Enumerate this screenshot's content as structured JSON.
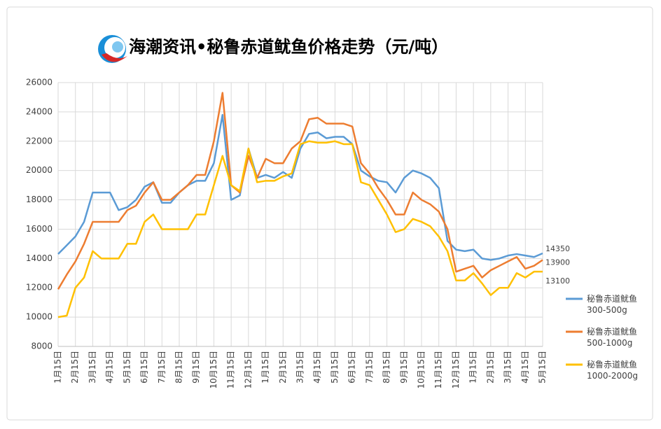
{
  "chart_data": {
    "type": "line",
    "title": "海潮资讯•秘鲁赤道鱿鱼价格走势（元/吨）",
    "categories": [
      "1月15日",
      null,
      "2月15日",
      null,
      "3月15日",
      null,
      "4月15日",
      null,
      "5月15日",
      null,
      "6月15日",
      null,
      "7月15日",
      null,
      "8月15日",
      null,
      "9月15日",
      null,
      "10月15日",
      null,
      "11月15日",
      null,
      "12月15日",
      null,
      "1月15日",
      null,
      "2月15日",
      null,
      "3月15日",
      null,
      "4月15日",
      null,
      "5月15日",
      null,
      "6月15日",
      null,
      "7月15日",
      null,
      "8月15日",
      null,
      "9月15日",
      null,
      "10月15日",
      null,
      "11月15日",
      null,
      "12月15日",
      null,
      "1月15日",
      null,
      "2月15日",
      null,
      "3月15日",
      null,
      "4月15日",
      null,
      "5月15日"
    ],
    "series": [
      {
        "name": "秘鲁赤道鱿鱼300-500g",
        "color": "#5b9bd5",
        "values": [
          14300,
          14900,
          15500,
          16500,
          18500,
          18500,
          18500,
          17300,
          17500,
          18000,
          18900,
          19200,
          17800,
          17800,
          18500,
          19000,
          19300,
          19300,
          20500,
          23800,
          18000,
          18300,
          21500,
          19500,
          19700,
          19500,
          19900,
          19500,
          21500,
          22500,
          22600,
          22200,
          22300,
          22300,
          21800,
          20000,
          19600,
          19300,
          19200,
          18500,
          19500,
          20000,
          19800,
          19500,
          18800,
          15200,
          14600,
          14500,
          14600,
          14000,
          13900,
          14000,
          14200,
          14300,
          14200,
          14100,
          14350
        ]
      },
      {
        "name": "秘鲁赤道鱿鱼500-1000g",
        "color": "#ed7d31",
        "values": [
          11900,
          12900,
          13800,
          15000,
          16500,
          16500,
          16500,
          16500,
          17300,
          17600,
          18500,
          19200,
          18000,
          18000,
          18500,
          19000,
          19700,
          19700,
          22000,
          25300,
          19000,
          18500,
          21000,
          19500,
          20800,
          20500,
          20500,
          21500,
          22000,
          23500,
          23600,
          23200,
          23200,
          23200,
          23000,
          20500,
          19800,
          18800,
          18000,
          17000,
          17000,
          18500,
          18000,
          17700,
          17200,
          16000,
          13100,
          13300,
          13500,
          12700,
          13200,
          13500,
          13800,
          14100,
          13300,
          13500,
          13900
        ]
      },
      {
        "name": "秘鲁赤道鱿鱼1000-2000g",
        "color": "#ffc000",
        "values": [
          10000,
          10100,
          12000,
          12700,
          14500,
          14000,
          14000,
          14000,
          15000,
          15000,
          16500,
          17000,
          16000,
          16000,
          16000,
          16000,
          17000,
          17000,
          19000,
          21000,
          19000,
          18600,
          21500,
          19200,
          19300,
          19300,
          19600,
          19800,
          21800,
          22000,
          21900,
          21900,
          22000,
          21800,
          21800,
          19200,
          19000,
          18000,
          17000,
          15800,
          16000,
          16700,
          16500,
          16200,
          15500,
          14500,
          12500,
          12500,
          13000,
          12300,
          11500,
          12000,
          12000,
          13000,
          12700,
          13100,
          13100
        ]
      }
    ],
    "ylim": [
      8000,
      26000
    ],
    "yticks": [
      8000,
      10000,
      12000,
      14000,
      16000,
      18000,
      20000,
      22000,
      24000,
      26000
    ],
    "grid": true,
    "legend": "right"
  }
}
